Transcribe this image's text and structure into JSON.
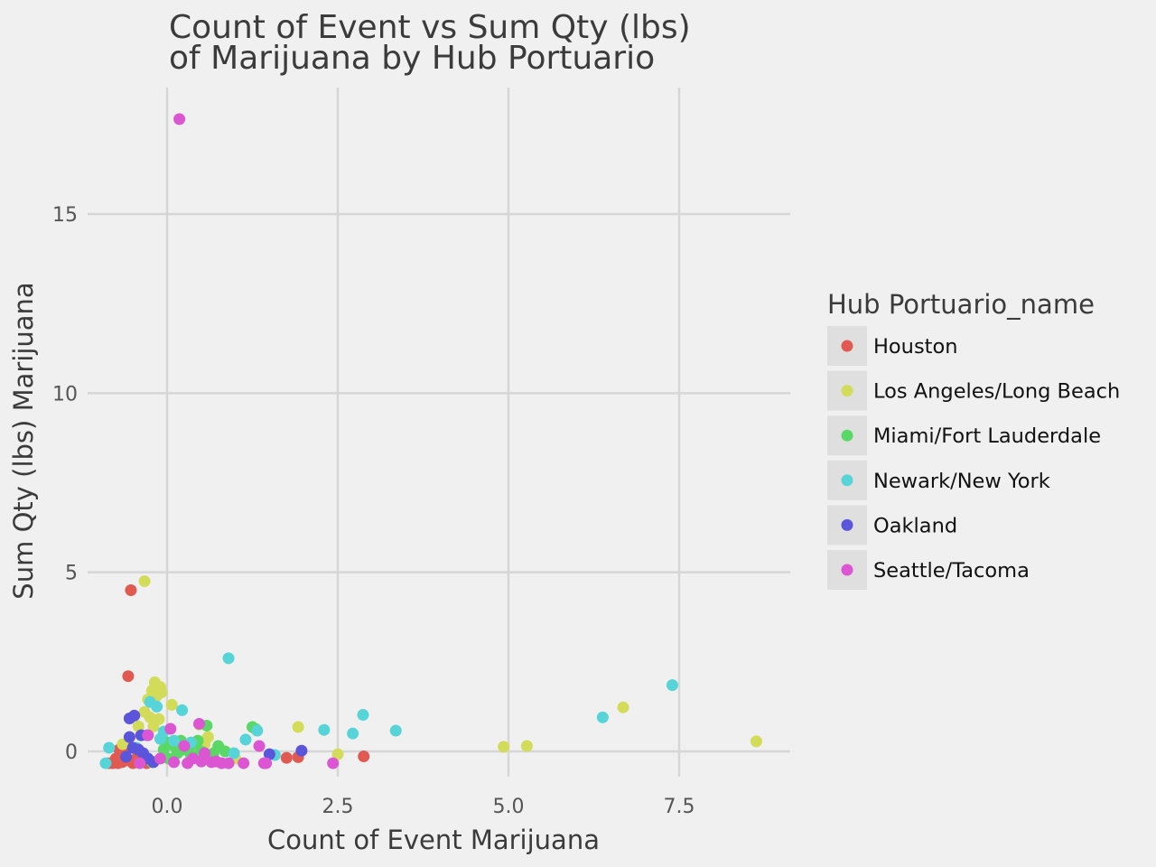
{
  "chart_data": {
    "type": "scatter",
    "title": [
      "Count of Event vs Sum Qty (lbs)",
      "of Marijuana by Hub Portuario"
    ],
    "xlabel": "Count of Event Marijuana",
    "ylabel": "Sum Qty (lbs) Marijuana",
    "xlim": [
      -1.2,
      9.0
    ],
    "ylim": [
      -1.0,
      18.5
    ],
    "x_ticks": [
      0.0,
      2.5,
      5.0,
      7.5
    ],
    "x_tick_labels": [
      "0.0",
      "2.5",
      "5.0",
      "7.5"
    ],
    "y_ticks": [
      0,
      5,
      10,
      15
    ],
    "y_tick_labels": [
      "0",
      "5",
      "10",
      "15"
    ],
    "grid": true,
    "legend": {
      "title": "Hub Portuario_name",
      "placement": "right"
    },
    "series": [
      {
        "name": "Houston",
        "color": "#e05a52",
        "points": [
          [
            -0.53,
            4.5
          ],
          [
            -0.57,
            2.1
          ],
          [
            -0.7,
            0.05
          ],
          [
            -0.62,
            -0.05
          ],
          [
            -0.75,
            -0.2
          ],
          [
            -0.8,
            -0.33
          ],
          [
            -0.85,
            -0.33
          ],
          [
            -0.72,
            -0.33
          ],
          [
            -0.66,
            -0.3
          ],
          [
            -0.6,
            -0.25
          ],
          [
            -0.5,
            -0.33
          ],
          [
            -0.45,
            -0.2
          ],
          [
            -0.38,
            -0.1
          ],
          [
            -0.3,
            -0.33
          ],
          [
            -0.55,
            0.1
          ],
          [
            -0.67,
            0.0
          ],
          [
            1.75,
            -0.18
          ],
          [
            1.92,
            -0.16
          ],
          [
            2.88,
            -0.14
          ]
        ]
      },
      {
        "name": "Los Angeles/Long Beach",
        "color": "#d2dc58",
        "points": [
          [
            -0.33,
            4.75
          ],
          [
            -0.18,
            1.93
          ],
          [
            -0.1,
            1.8
          ],
          [
            -0.22,
            1.7
          ],
          [
            -0.08,
            1.65
          ],
          [
            -0.15,
            1.55
          ],
          [
            -0.28,
            1.45
          ],
          [
            -0.33,
            1.1
          ],
          [
            -0.25,
            0.95
          ],
          [
            -0.12,
            0.9
          ],
          [
            -0.2,
            0.7
          ],
          [
            -0.42,
            0.7
          ],
          [
            0.07,
            1.3
          ],
          [
            0.47,
            0.75
          ],
          [
            0.6,
            0.4
          ],
          [
            0.55,
            0.2
          ],
          [
            -0.65,
            0.2
          ],
          [
            1.0,
            -0.2
          ],
          [
            1.92,
            0.68
          ],
          [
            2.5,
            -0.08
          ],
          [
            4.93,
            0.13
          ],
          [
            5.27,
            0.15
          ],
          [
            6.68,
            1.23
          ],
          [
            8.63,
            0.28
          ]
        ]
      },
      {
        "name": "Miami/Fort Lauderdale",
        "color": "#5ad865",
        "points": [
          [
            0.0,
            0.25
          ],
          [
            0.1,
            0.15
          ],
          [
            0.2,
            0.3
          ],
          [
            0.3,
            0.1
          ],
          [
            0.4,
            0.2
          ],
          [
            0.5,
            0.0
          ],
          [
            0.58,
            0.72
          ],
          [
            0.75,
            0.15
          ],
          [
            0.85,
            0.0
          ],
          [
            -0.05,
            0.05
          ],
          [
            0.15,
            -0.05
          ],
          [
            0.35,
            -0.1
          ],
          [
            0.62,
            -0.15
          ],
          [
            -0.22,
            -0.3
          ],
          [
            0.02,
            -0.2
          ],
          [
            1.25,
            0.68
          ],
          [
            1.3,
            0.62
          ],
          [
            0.45,
            0.3
          ],
          [
            0.25,
            0.05
          ],
          [
            0.68,
            -0.05
          ]
        ]
      },
      {
        "name": "Newark/New York",
        "color": "#56d4d8",
        "points": [
          [
            0.9,
            2.6
          ],
          [
            0.22,
            1.15
          ],
          [
            -0.25,
            1.38
          ],
          [
            -0.15,
            1.25
          ],
          [
            -0.05,
            0.55
          ],
          [
            -0.1,
            0.35
          ],
          [
            0.1,
            0.3
          ],
          [
            -0.45,
            0.1
          ],
          [
            -0.85,
            0.1
          ],
          [
            -0.9,
            -0.33
          ],
          [
            -0.3,
            0.45
          ],
          [
            1.15,
            0.33
          ],
          [
            1.32,
            0.58
          ],
          [
            0.98,
            -0.05
          ],
          [
            1.58,
            -0.1
          ],
          [
            2.3,
            0.6
          ],
          [
            2.72,
            0.5
          ],
          [
            2.87,
            1.02
          ],
          [
            3.35,
            0.58
          ],
          [
            6.38,
            0.95
          ],
          [
            7.4,
            1.85
          ],
          [
            0.35,
            0.25
          ]
        ]
      },
      {
        "name": "Oakland",
        "color": "#5b55dc",
        "points": [
          [
            -0.55,
            0.92
          ],
          [
            -0.48,
            1.0
          ],
          [
            -0.55,
            0.4
          ],
          [
            -0.38,
            0.45
          ],
          [
            -0.5,
            0.1
          ],
          [
            -0.42,
            0.05
          ],
          [
            -0.6,
            -0.15
          ],
          [
            -0.35,
            -0.05
          ],
          [
            -0.28,
            -0.2
          ],
          [
            -0.2,
            -0.3
          ],
          [
            1.5,
            -0.08
          ],
          [
            1.97,
            0.02
          ]
        ]
      },
      {
        "name": "Seattle/Tacoma",
        "color": "#dc55d2",
        "points": [
          [
            0.18,
            17.65
          ],
          [
            0.47,
            0.77
          ],
          [
            0.05,
            0.63
          ],
          [
            -0.28,
            0.45
          ],
          [
            0.25,
            0.15
          ],
          [
            1.35,
            0.15
          ],
          [
            -0.1,
            -0.2
          ],
          [
            0.1,
            -0.3
          ],
          [
            0.3,
            -0.33
          ],
          [
            0.5,
            -0.28
          ],
          [
            0.65,
            -0.3
          ],
          [
            0.8,
            -0.33
          ],
          [
            0.9,
            -0.33
          ],
          [
            1.12,
            -0.33
          ],
          [
            1.42,
            -0.33
          ],
          [
            2.43,
            -0.33
          ],
          [
            0.72,
            -0.28
          ],
          [
            0.38,
            -0.2
          ],
          [
            -0.4,
            -0.33
          ],
          [
            0.55,
            -0.05
          ],
          [
            1.45,
            -0.33
          ]
        ]
      }
    ]
  }
}
